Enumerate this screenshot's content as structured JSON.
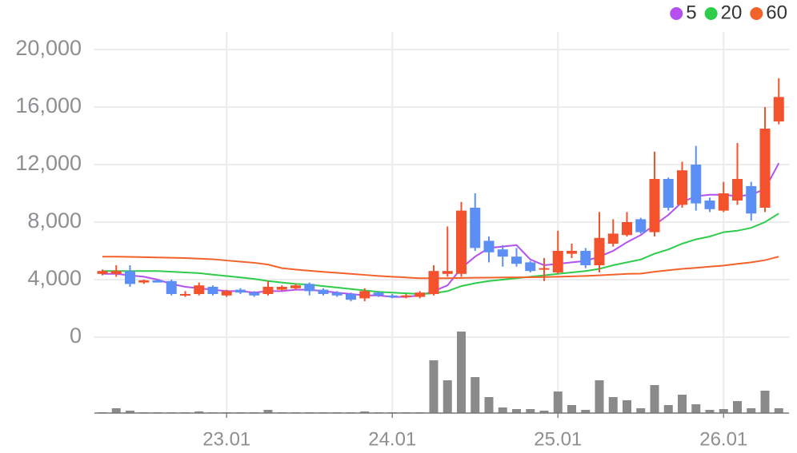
{
  "chart_data": {
    "type": "candlestick",
    "categories": [
      null,
      null,
      null,
      null,
      null,
      null,
      null,
      null,
      null,
      "23.01",
      null,
      null,
      null,
      null,
      null,
      null,
      null,
      null,
      null,
      null,
      null,
      "24.01",
      null,
      null,
      null,
      null,
      null,
      null,
      null,
      null,
      null,
      null,
      null,
      "25.01",
      null,
      null,
      null,
      null,
      null,
      null,
      null,
      null,
      null,
      null,
      null,
      "26.01",
      null,
      null,
      null,
      null
    ],
    "open": [
      4400,
      4400,
      4600,
      3800,
      3950,
      3900,
      3000,
      3000,
      3500,
      2900,
      3300,
      3100,
      3000,
      3300,
      3400,
      3700,
      3300,
      3100,
      3000,
      2700,
      3100,
      2900,
      2800,
      2800,
      3000,
      4400,
      4400,
      9000,
      6700,
      6100,
      5600,
      5200,
      4700,
      4500,
      5800,
      6000,
      5000,
      6500,
      7100,
      8200,
      7300,
      11000,
      9200,
      12000,
      9500,
      8800,
      9500,
      10500,
      9000,
      15000
    ],
    "high": [
      4700,
      5000,
      5000,
      4000,
      4000,
      4000,
      3200,
      3800,
      3600,
      3300,
      3400,
      3200,
      3900,
      3600,
      3700,
      3800,
      3400,
      3200,
      3100,
      3400,
      3200,
      3000,
      3000,
      3200,
      5000,
      7700,
      9400,
      10000,
      7000,
      6400,
      6200,
      5300,
      5500,
      7400,
      6500,
      6200,
      8700,
      8200,
      8700,
      8300,
      12900,
      11100,
      12200,
      13300,
      9700,
      10800,
      13500,
      10800,
      16000,
      18000
    ],
    "low": [
      4300,
      4200,
      3500,
      3700,
      3800,
      2900,
      2800,
      2900,
      2900,
      2800,
      3000,
      2800,
      2900,
      3200,
      3300,
      2900,
      2900,
      2800,
      2500,
      2500,
      2800,
      2700,
      2700,
      2700,
      2900,
      4200,
      4200,
      6000,
      5200,
      4900,
      4900,
      4500,
      3900,
      4400,
      5500,
      4800,
      4500,
      6300,
      7000,
      7200,
      7000,
      8800,
      9000,
      8800,
      8700,
      8700,
      9200,
      8100,
      8700,
      14800
    ],
    "close": [
      4600,
      4600,
      3700,
      3950,
      3800,
      3000,
      3000,
      3600,
      3000,
      3200,
      3100,
      2900,
      3500,
      3500,
      3600,
      3200,
      3000,
      2900,
      2600,
      3200,
      2900,
      2800,
      2900,
      3100,
      4600,
      4600,
      8800,
      6200,
      5900,
      5600,
      5100,
      4600,
      4800,
      6000,
      6000,
      5000,
      6900,
      7200,
      8000,
      7300,
      11000,
      9000,
      11600,
      9300,
      8900,
      10000,
      11000,
      8600,
      14500,
      16700
    ],
    "up_color": "#f4522c",
    "down_color": "#5b8ff5",
    "volume": [
      1,
      6,
      3,
      1,
      1,
      1,
      1,
      2,
      1,
      1,
      1,
      1,
      4,
      1,
      1,
      1,
      1,
      1,
      1,
      2,
      1,
      1,
      1,
      1,
      66,
      41,
      102,
      45,
      20,
      7,
      5,
      5,
      3,
      27,
      10,
      4,
      41,
      20,
      16,
      6,
      35,
      10,
      23,
      11,
      4,
      5,
      15,
      6,
      28,
      6
    ],
    "volume_color": "#8a8a8a",
    "series": [
      {
        "name": "5",
        "color": "#b450f0",
        "values": [
          4400,
          4400,
          4300,
          4200,
          4000,
          3700,
          3500,
          3400,
          3300,
          3200,
          3200,
          3100,
          3200,
          3200,
          3300,
          3300,
          3200,
          3100,
          3000,
          2900,
          2900,
          2800,
          2800,
          2900,
          3200,
          3600,
          4800,
          5600,
          6200,
          6300,
          6400,
          5400,
          5000,
          5100,
          5200,
          5300,
          5600,
          6000,
          6600,
          7100,
          7800,
          8500,
          9400,
          9800,
          9900,
          9900,
          9800,
          9900,
          10300,
          12100
        ]
      },
      {
        "name": "20",
        "color": "#2ecc4a",
        "values": [
          4600,
          4600,
          4600,
          4600,
          4600,
          4550,
          4500,
          4450,
          4350,
          4250,
          4150,
          4050,
          3900,
          3800,
          3700,
          3650,
          3550,
          3450,
          3350,
          3250,
          3150,
          3100,
          3050,
          3000,
          3050,
          3200,
          3550,
          3750,
          3900,
          4000,
          4100,
          4200,
          4300,
          4400,
          4500,
          4600,
          4750,
          5000,
          5200,
          5400,
          5800,
          6100,
          6500,
          6800,
          7000,
          7300,
          7400,
          7600,
          8000,
          8600
        ]
      },
      {
        "name": "60",
        "color": "#f4622c",
        "values": [
          5600,
          5600,
          5580,
          5560,
          5540,
          5520,
          5500,
          5460,
          5420,
          5330,
          5250,
          5170,
          5050,
          4800,
          4700,
          4620,
          4540,
          4470,
          4400,
          4330,
          4260,
          4200,
          4150,
          4100,
          4100,
          4100,
          4120,
          4130,
          4140,
          4150,
          4160,
          4170,
          4180,
          4200,
          4230,
          4260,
          4300,
          4350,
          4400,
          4420,
          4550,
          4650,
          4750,
          4820,
          4900,
          4980,
          5100,
          5200,
          5350,
          5600
        ]
      }
    ],
    "ylim": [
      0,
      20000
    ],
    "yticks": [
      0,
      {
        "value": 4000,
        "label": "4,000"
      },
      {
        "value": 8000,
        "label": "8,000"
      },
      {
        "value": 12000,
        "label": "12,000"
      },
      {
        "value": 16000,
        "label": "16,000"
      },
      {
        "value": 20000,
        "label": "20,000"
      }
    ],
    "grid": true,
    "legend": "top-right"
  }
}
